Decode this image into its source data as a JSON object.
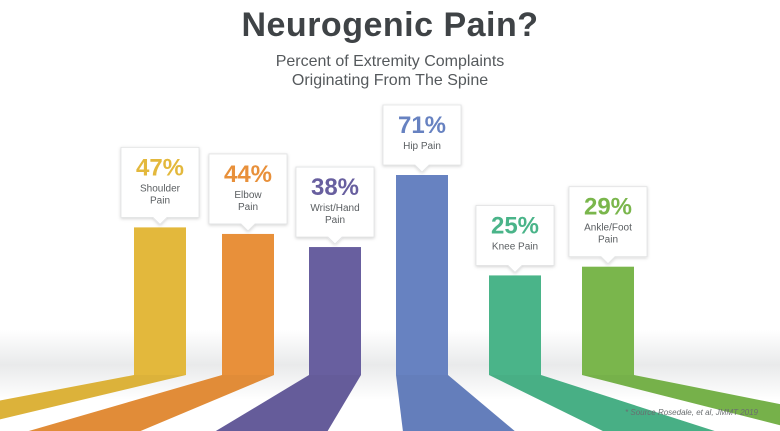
{
  "chart_data": {
    "type": "bar",
    "title": "Neurogenic Pain?",
    "subtitle": "Percent of Extremity Complaints\nOriginating From The Spine",
    "categories": [
      "Shoulder Pain",
      "Elbow Pain",
      "Wrist/Hand Pain",
      "Hip Pain",
      "Knee Pain",
      "Ankle/Foot Pain"
    ],
    "category_labels": [
      "Shoulder\nPain",
      "Elbow\nPain",
      "Wrist/Hand\nPain",
      "Hip Pain",
      "Knee Pain",
      "Ankle/Foot\nPain"
    ],
    "values": [
      47,
      44,
      38,
      71,
      25,
      29
    ],
    "value_labels": [
      "47%",
      "44%",
      "38%",
      "71%",
      "25%",
      "29%"
    ],
    "colors": [
      "#e3b83c",
      "#e8903a",
      "#685f9f",
      "#6782c1",
      "#4ab489",
      "#7ab64c"
    ],
    "ylim": [
      0,
      100
    ],
    "footnote": "* Source Rosedale, et al, JMMT 2019"
  }
}
